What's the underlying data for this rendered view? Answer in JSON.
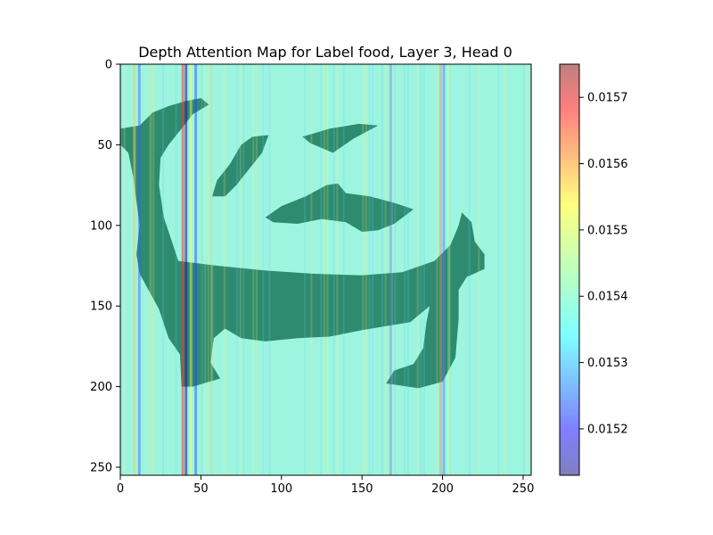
{
  "chart_data": {
    "type": "heatmap",
    "title": "Depth Attention Map for Label food, Layer 3, Head 0",
    "xlabel": "",
    "ylabel": "",
    "x_ticks": [
      0,
      50,
      100,
      150,
      200,
      250
    ],
    "y_ticks": [
      0,
      50,
      100,
      150,
      200,
      250
    ],
    "xlim": [
      0,
      255
    ],
    "ylim": [
      255,
      0
    ],
    "grid": false,
    "colormap": "jet",
    "overlay_alpha": 0.5,
    "colorbar": {
      "range": [
        0.01513,
        0.01575
      ],
      "ticks": [
        0.0152,
        0.0153,
        0.0154,
        0.0155,
        0.0156,
        0.0157
      ],
      "tick_labels": [
        "0.0152",
        "0.0153",
        "0.0154",
        "0.0155",
        "0.0156",
        "0.0157"
      ]
    },
    "background_value": 0.01541,
    "mask_color": "#2e8b6e",
    "background_color": "#9ef5df",
    "mask_regions": [
      [
        [
          0,
          40
        ],
        [
          12,
          38
        ],
        [
          20,
          30
        ],
        [
          30,
          26
        ],
        [
          40,
          23
        ],
        [
          50,
          21
        ],
        [
          55,
          25
        ],
        [
          45,
          31
        ],
        [
          38,
          40
        ],
        [
          30,
          50
        ],
        [
          25,
          58
        ],
        [
          24,
          75
        ],
        [
          27,
          95
        ],
        [
          32,
          110
        ],
        [
          36,
          122
        ],
        [
          60,
          125
        ],
        [
          90,
          128
        ],
        [
          120,
          130
        ],
        [
          150,
          131
        ],
        [
          175,
          129
        ],
        [
          195,
          122
        ],
        [
          205,
          112
        ],
        [
          210,
          100
        ],
        [
          212,
          92
        ],
        [
          218,
          98
        ],
        [
          220,
          110
        ],
        [
          226,
          118
        ],
        [
          226,
          127
        ],
        [
          215,
          132
        ],
        [
          210,
          140
        ],
        [
          210,
          158
        ],
        [
          208,
          182
        ],
        [
          200,
          197
        ],
        [
          185,
          201
        ],
        [
          165,
          198
        ],
        [
          170,
          190
        ],
        [
          182,
          186
        ],
        [
          188,
          176
        ],
        [
          190,
          160
        ],
        [
          192,
          150
        ],
        [
          180,
          160
        ],
        [
          150,
          165
        ],
        [
          130,
          169
        ],
        [
          110,
          170
        ],
        [
          90,
          172
        ],
        [
          75,
          170
        ],
        [
          65,
          164
        ],
        [
          58,
          170
        ],
        [
          56,
          185
        ],
        [
          62,
          195
        ],
        [
          45,
          200
        ],
        [
          38,
          200
        ],
        [
          37,
          180
        ],
        [
          30,
          170
        ],
        [
          24,
          152
        ],
        [
          12,
          130
        ],
        [
          10,
          118
        ],
        [
          12,
          100
        ],
        [
          8,
          70
        ],
        [
          5,
          55
        ],
        [
          0,
          50
        ]
      ],
      [
        [
          57,
          82
        ],
        [
          60,
          72
        ],
        [
          68,
          62
        ],
        [
          75,
          50
        ],
        [
          82,
          45
        ],
        [
          92,
          44
        ],
        [
          88,
          55
        ],
        [
          80,
          65
        ],
        [
          72,
          75
        ],
        [
          65,
          82
        ]
      ],
      [
        [
          90,
          95
        ],
        [
          100,
          88
        ],
        [
          115,
          82
        ],
        [
          128,
          75
        ],
        [
          135,
          74
        ],
        [
          140,
          80
        ],
        [
          155,
          82
        ],
        [
          170,
          86
        ],
        [
          182,
          90
        ],
        [
          170,
          99
        ],
        [
          160,
          103
        ],
        [
          150,
          104
        ],
        [
          140,
          98
        ],
        [
          125,
          96
        ],
        [
          110,
          99
        ],
        [
          95,
          98
        ]
      ],
      [
        [
          113,
          45
        ],
        [
          130,
          40
        ],
        [
          148,
          37
        ],
        [
          160,
          38
        ],
        [
          145,
          46
        ],
        [
          132,
          55
        ],
        [
          125,
          52
        ],
        [
          118,
          49
        ]
      ]
    ]
  }
}
